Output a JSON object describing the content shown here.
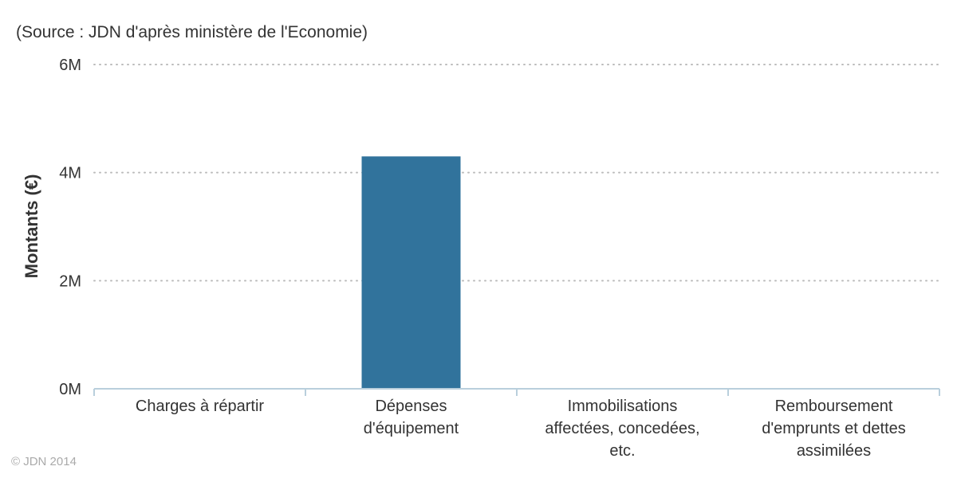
{
  "source_note": "(Source : JDN d'après ministère de l'Economie)",
  "credit": "© JDN 2014",
  "colors": {
    "bar": "#31739C",
    "grid": "#bbbbbb",
    "axis": "#b9cfdc"
  },
  "chart_data": {
    "type": "bar",
    "title": "",
    "xlabel": "",
    "ylabel": "Montants (€)",
    "ylim": [
      0,
      6000000
    ],
    "yticks": [
      {
        "value": 0,
        "label": "0M"
      },
      {
        "value": 2000000,
        "label": "2M"
      },
      {
        "value": 4000000,
        "label": "4M"
      },
      {
        "value": 6000000,
        "label": "6M"
      }
    ],
    "grid": true,
    "categories": [
      [
        "Charges à répartir"
      ],
      [
        "Dépenses",
        "d'équipement"
      ],
      [
        "Immobilisations",
        "affectées, concedées,",
        "etc."
      ],
      [
        "Remboursement",
        "d'emprunts et dettes",
        "assimilées"
      ]
    ],
    "values": [
      0,
      4300000,
      0,
      0
    ]
  }
}
